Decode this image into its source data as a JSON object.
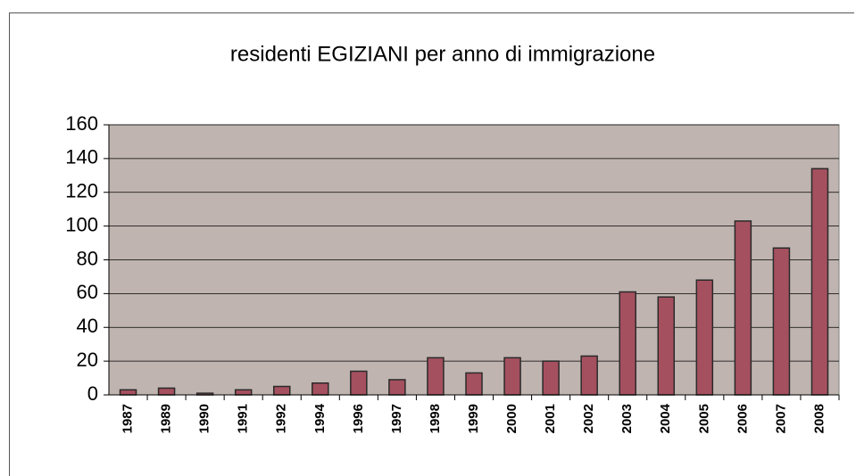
{
  "chart_data": {
    "type": "bar",
    "title": "residenti EGIZIANI per anno di immigrazione",
    "categories": [
      "1987",
      "1989",
      "1990",
      "1991",
      "1992",
      "1994",
      "1996",
      "1997",
      "1998",
      "1999",
      "2000",
      "2001",
      "2002",
      "2003",
      "2004",
      "2005",
      "2006",
      "2007",
      "2008"
    ],
    "values": [
      3,
      4,
      1,
      3,
      5,
      7,
      14,
      9,
      22,
      13,
      22,
      20,
      23,
      61,
      58,
      68,
      103,
      87,
      134
    ],
    "color": "#a5505f",
    "ylim": [
      0,
      160
    ],
    "yticks": [
      0,
      20,
      40,
      60,
      80,
      100,
      120,
      140,
      160
    ],
    "grid": true
  }
}
